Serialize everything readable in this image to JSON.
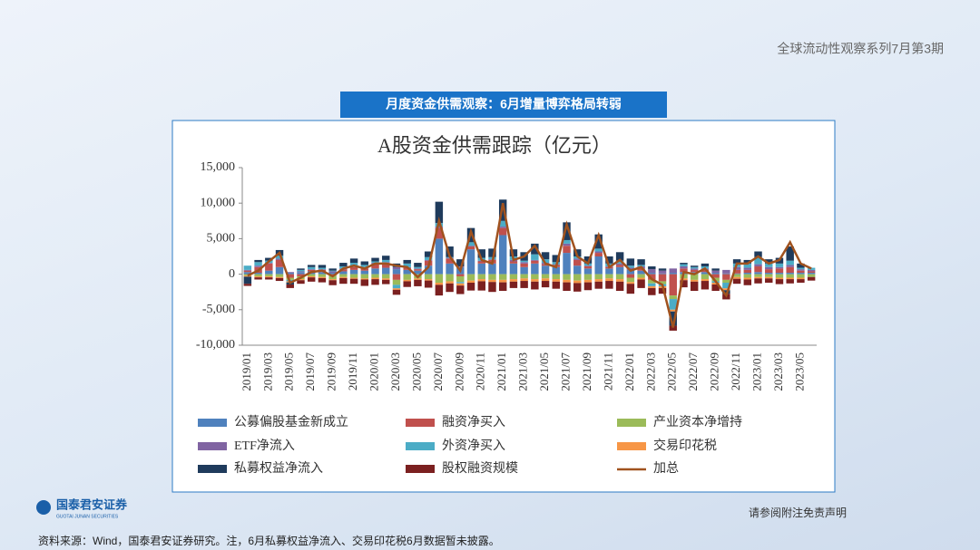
{
  "header": {
    "series_title": "全球流动性观察系列7月第3期",
    "banner": "月度资金供需观察：6月增量博弈格局转弱"
  },
  "chart_data": {
    "type": "bar",
    "stacked": true,
    "title": "A股资金供需跟踪（亿元）",
    "categories": [
      "2019/01",
      null,
      "2019/03",
      null,
      "2019/05",
      null,
      "2019/07",
      null,
      "2019/09",
      null,
      "2019/11",
      null,
      "2020/01",
      null,
      "2020/03",
      null,
      "2020/05",
      null,
      "2020/07",
      null,
      "2020/09",
      null,
      "2020/11",
      null,
      "2021/01",
      null,
      "2021/03",
      null,
      "2021/05",
      null,
      "2021/07",
      null,
      "2021/09",
      null,
      "2021/11",
      null,
      "2022/01",
      null,
      "2022/03",
      null,
      "2022/05",
      null,
      "2022/07",
      null,
      "2022/09",
      null,
      "2022/11",
      null,
      "2023/01",
      null,
      "2023/03",
      null,
      "2023/05",
      null
    ],
    "ylim": [
      -10000,
      15000
    ],
    "yticks": [
      {
        "value": -10000,
        "label": "-10,000"
      },
      {
        "value": -5000,
        "label": "-5,000"
      },
      0,
      {
        "value": 5000,
        "label": "5,000"
      },
      {
        "value": 10000,
        "label": "10,000"
      },
      {
        "value": 15000,
        "label": "15,000"
      }
    ],
    "series": [
      {
        "name": "公募偏股基金新成立",
        "color": "#4f81bd",
        "values": [
          300,
          200,
          500,
          1000,
          200,
          300,
          400,
          300,
          200,
          400,
          600,
          500,
          800,
          900,
          700,
          600,
          500,
          1200,
          5000,
          1500,
          1000,
          3500,
          1500,
          1500,
          5500,
          1500,
          1000,
          1500,
          1200,
          1000,
          3000,
          1200,
          800,
          2500,
          800,
          1000,
          600,
          500,
          200,
          100,
          200,
          300,
          300,
          300,
          200,
          100,
          100,
          200,
          300,
          200,
          200,
          200,
          200,
          200
        ]
      },
      {
        "name": "融资净买入",
        "color": "#c0504d",
        "values": [
          200,
          800,
          1000,
          1000,
          -500,
          -300,
          200,
          300,
          -200,
          300,
          400,
          300,
          600,
          700,
          -800,
          300,
          200,
          700,
          1500,
          700,
          -300,
          400,
          300,
          500,
          1000,
          300,
          500,
          400,
          200,
          300,
          1000,
          800,
          300,
          500,
          200,
          300,
          -500,
          300,
          -800,
          -1000,
          -3000,
          500,
          300,
          300,
          -500,
          -800,
          500,
          400,
          800,
          500,
          600,
          800,
          300,
          200
        ]
      },
      {
        "name": "产业资本净增持",
        "color": "#9bbb59",
        "values": [
          -200,
          -300,
          -300,
          -400,
          -300,
          -400,
          -300,
          -400,
          -500,
          -400,
          -500,
          -600,
          -500,
          -600,
          -700,
          -800,
          -600,
          -700,
          -1200,
          -1000,
          -800,
          -900,
          -700,
          -800,
          -800,
          -700,
          -600,
          -700,
          -600,
          -700,
          -800,
          -900,
          -800,
          -700,
          -600,
          -700,
          -600,
          -500,
          -500,
          -400,
          -500,
          -600,
          -800,
          -700,
          -500,
          -400,
          -400,
          -500,
          -400,
          -400,
          -500,
          -500,
          -500,
          -400
        ]
      },
      {
        "name": "ETF净流入",
        "color": "#8064a2",
        "values": [
          100,
          200,
          100,
          200,
          100,
          100,
          100,
          100,
          200,
          100,
          100,
          200,
          200,
          100,
          300,
          100,
          100,
          100,
          200,
          100,
          100,
          100,
          100,
          100,
          200,
          200,
          200,
          100,
          200,
          100,
          300,
          200,
          100,
          200,
          100,
          200,
          300,
          300,
          500,
          400,
          600,
          300,
          200,
          200,
          300,
          500,
          400,
          300,
          300,
          300,
          200,
          300,
          200,
          200
        ]
      },
      {
        "name": "外资净买入",
        "color": "#4bacc6",
        "values": [
          600,
          500,
          300,
          400,
          -200,
          200,
          300,
          200,
          100,
          300,
          500,
          300,
          200,
          300,
          -500,
          500,
          200,
          400,
          500,
          100,
          -200,
          500,
          400,
          300,
          800,
          500,
          200,
          800,
          500,
          300,
          500,
          300,
          300,
          400,
          400,
          400,
          300,
          200,
          -400,
          -300,
          -1500,
          300,
          200,
          300,
          -200,
          -800,
          500,
          600,
          1000,
          500,
          500,
          600,
          200,
          300
        ]
      },
      {
        "name": "交易印花税",
        "color": "#f79646",
        "values": [
          -150,
          -150,
          -150,
          -150,
          -150,
          -150,
          -150,
          -150,
          -150,
          -150,
          -150,
          -150,
          -200,
          -200,
          -200,
          -200,
          -200,
          -200,
          -300,
          -300,
          -300,
          -300,
          -300,
          -300,
          -350,
          -350,
          -350,
          -350,
          -350,
          -350,
          -350,
          -350,
          -350,
          -350,
          -350,
          -350,
          -250,
          -250,
          -250,
          -250,
          -250,
          -250,
          -250,
          -250,
          -250,
          -250,
          -250,
          -250,
          -200,
          -200,
          -200,
          -200,
          -200,
          null
        ]
      },
      {
        "name": "私募权益净流入",
        "color": "#1f3b5c",
        "values": [
          -1000,
          300,
          400,
          800,
          -300,
          200,
          300,
          400,
          300,
          500,
          600,
          500,
          500,
          600,
          500,
          500,
          600,
          800,
          3000,
          1500,
          1000,
          2000,
          1200,
          1200,
          3000,
          1000,
          1200,
          1500,
          1000,
          1000,
          2500,
          1000,
          1000,
          2000,
          1000,
          1200,
          1000,
          800,
          400,
          300,
          -2000,
          200,
          200,
          400,
          300,
          -500,
          600,
          500,
          800,
          600,
          800,
          2000,
          600,
          null
        ]
      },
      {
        "name": "股权融资规模",
        "color": "#7b2020",
        "values": [
          -300,
          -300,
          -300,
          -400,
          -500,
          -500,
          -600,
          -600,
          -700,
          -800,
          -700,
          -900,
          -800,
          -600,
          -700,
          -800,
          -900,
          -1000,
          -1500,
          -1200,
          -1200,
          -1100,
          -1300,
          -1400,
          -1200,
          -900,
          -1000,
          -1100,
          -900,
          -1000,
          -1200,
          -1200,
          -1100,
          -1000,
          -1100,
          -1300,
          -1400,
          -1200,
          -1000,
          -800,
          -700,
          -1000,
          -1300,
          -1200,
          -900,
          -800,
          -700,
          -800,
          -700,
          -600,
          -700,
          -600,
          -500,
          -500
        ]
      },
      {
        "name": "加总",
        "type": "line",
        "color": "#a0521e",
        "values": [
          -200,
          500,
          1800,
          3000,
          -1200,
          -500,
          300,
          500,
          -300,
          800,
          1200,
          800,
          1500,
          1500,
          1200,
          1000,
          -400,
          1000,
          7500,
          2500,
          500,
          6000,
          2000,
          1500,
          10000,
          2000,
          2500,
          4000,
          1500,
          1000,
          7000,
          2500,
          1500,
          5500,
          1000,
          2000,
          500,
          1000,
          -700,
          -1500,
          -7500,
          300,
          0,
          800,
          -1000,
          -3000,
          1500,
          1500,
          2500,
          1500,
          2000,
          4500,
          1500,
          800
        ]
      }
    ]
  },
  "footer": {
    "logo": "国泰君安证券",
    "logo_en": "GUOTAI JUNAN SECURITIES",
    "disclaimer": "请参阅附注免责声明",
    "source": "资料来源：Wind，国泰君安证券研究。注，6月私募权益净流入、交易印花税6月数据暂未披露。"
  }
}
